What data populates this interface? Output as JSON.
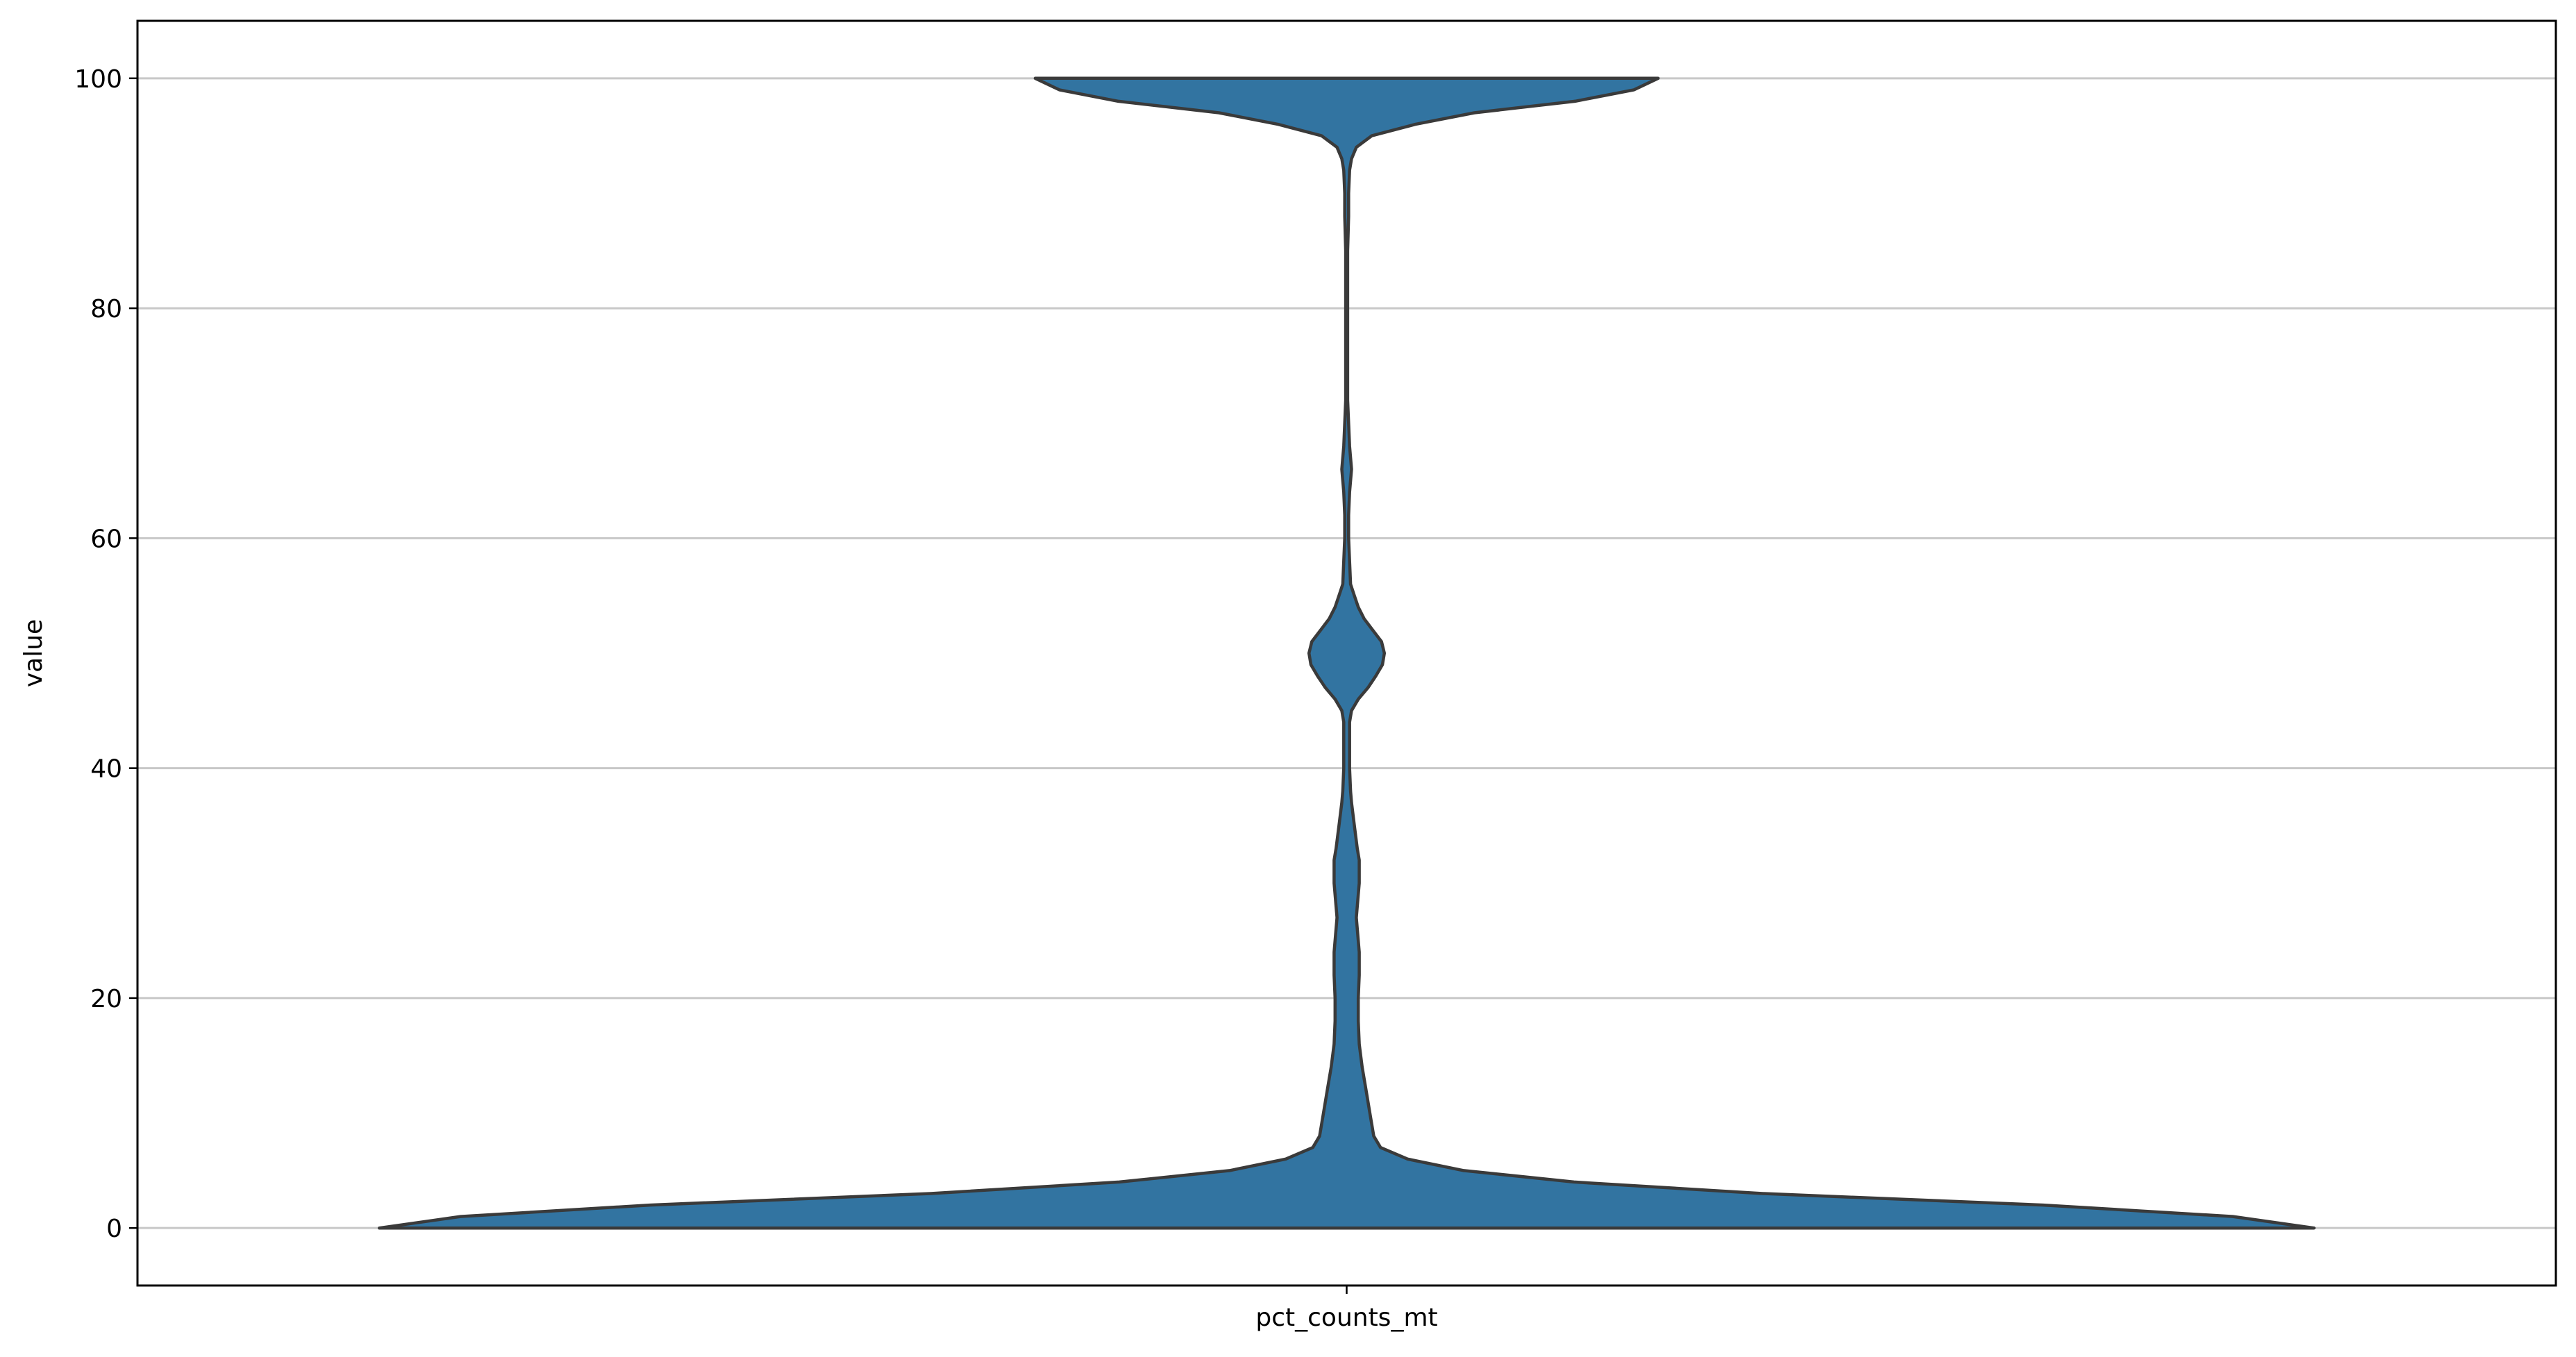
{
  "chart_data": {
    "type": "violin",
    "categories": [
      "pct_counts_mt"
    ],
    "xlabel": "",
    "ylabel": "value",
    "ylim": [
      -5,
      105
    ],
    "yticks": [
      0,
      20,
      40,
      60,
      80,
      100
    ],
    "ytick_labels": [
      "0",
      "20",
      "40",
      "60",
      "80",
      "100"
    ],
    "grid": "horizontal",
    "fill_color": "#3274a1",
    "edge_color": "#3a3a3a",
    "grid_color": "#c8c8c8",
    "value_range": [
      0,
      100
    ],
    "density_profile": {
      "y": [
        0,
        1,
        2,
        3,
        4,
        5,
        6,
        7,
        8,
        9,
        10,
        12,
        14,
        16,
        18,
        20,
        22,
        24,
        26,
        27,
        28,
        30,
        32,
        33,
        35,
        37,
        38,
        40,
        42,
        44,
        45,
        46,
        47,
        48,
        49,
        50,
        51,
        52,
        53,
        54,
        55,
        56,
        58,
        60,
        62,
        64,
        65,
        66,
        67,
        68,
        70,
        72,
        75,
        80,
        85,
        88,
        90,
        92,
        93,
        94,
        95,
        96,
        97,
        98,
        99,
        100
      ],
      "half_width": [
        1.0,
        0.916,
        0.72,
        0.43,
        0.235,
        0.121,
        0.063,
        0.035,
        0.028,
        0.026,
        0.024,
        0.02,
        0.016,
        0.013,
        0.012,
        0.012,
        0.013,
        0.013,
        0.011,
        0.01,
        0.011,
        0.013,
        0.013,
        0.011,
        0.008,
        0.005,
        0.004,
        0.003,
        0.003,
        0.003,
        0.005,
        0.012,
        0.022,
        0.03,
        0.037,
        0.039,
        0.036,
        0.027,
        0.018,
        0.012,
        0.008,
        0.004,
        0.003,
        0.002,
        0.002,
        0.003,
        0.004,
        0.005,
        0.004,
        0.003,
        0.002,
        0.001,
        0.001,
        0.001,
        0.001,
        0.002,
        0.002,
        0.003,
        0.005,
        0.01,
        0.026,
        0.071,
        0.132,
        0.236,
        0.297,
        0.322
      ]
    }
  }
}
